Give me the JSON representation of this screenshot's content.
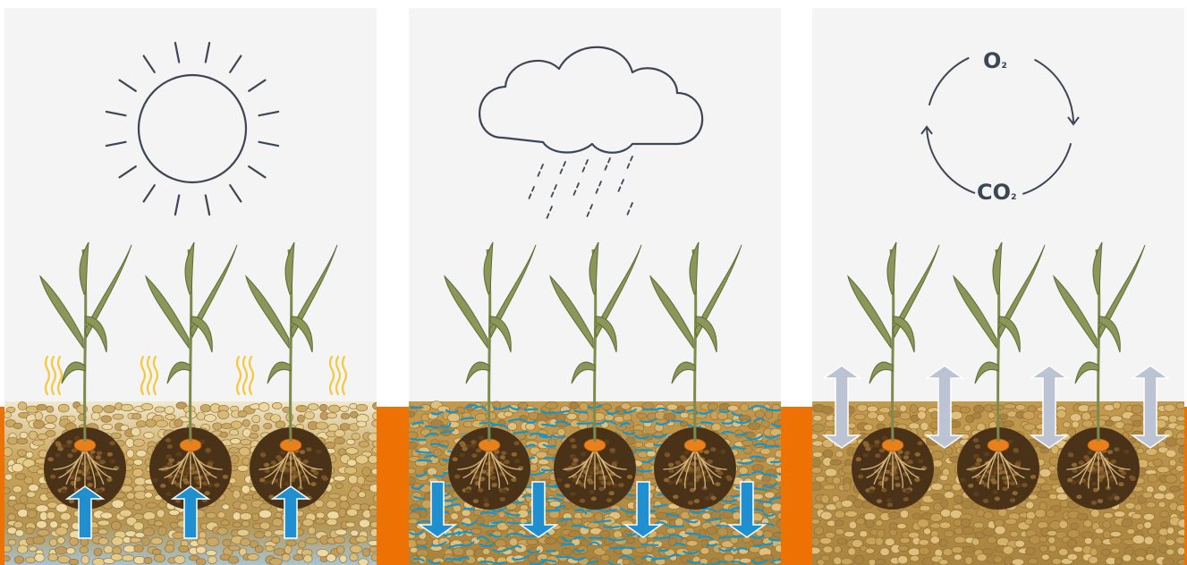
{
  "panels": [
    {
      "id": "drought",
      "sky": "sun",
      "water": "capillary-rise"
    },
    {
      "id": "rain",
      "sky": "rain-cloud",
      "water": "drainage"
    },
    {
      "id": "aeration",
      "sky": "gas-exchange-cycle",
      "water": "air-exchange"
    }
  ],
  "gas_cycle": {
    "top": {
      "symbol": "O",
      "subscript": "₂"
    },
    "bottom": {
      "symbol": "CO",
      "subscript": "₂"
    }
  },
  "colors": {
    "background": "#ffffff",
    "accent_band": "#ee7203",
    "panel": "#f4f4f5",
    "line_art": "#3d4754",
    "soil": "#b08a45",
    "soil_grain": "#d6b36a",
    "root_ball": "#4a3218",
    "seed": "#e8801c",
    "plant": "#7d8a4e",
    "water_arrow": "#1f8fd0",
    "water_film": "#1a93c7",
    "heat": "#f3c940",
    "air_arrow": "#bcc4d4"
  },
  "icons": [
    "sun-icon",
    "rain-cloud-icon",
    "gas-cycle-arrows-icon",
    "plant-icon",
    "heat-wave-icon",
    "water-arrow-up-icon",
    "water-arrow-down-icon",
    "air-arrow-icon"
  ]
}
